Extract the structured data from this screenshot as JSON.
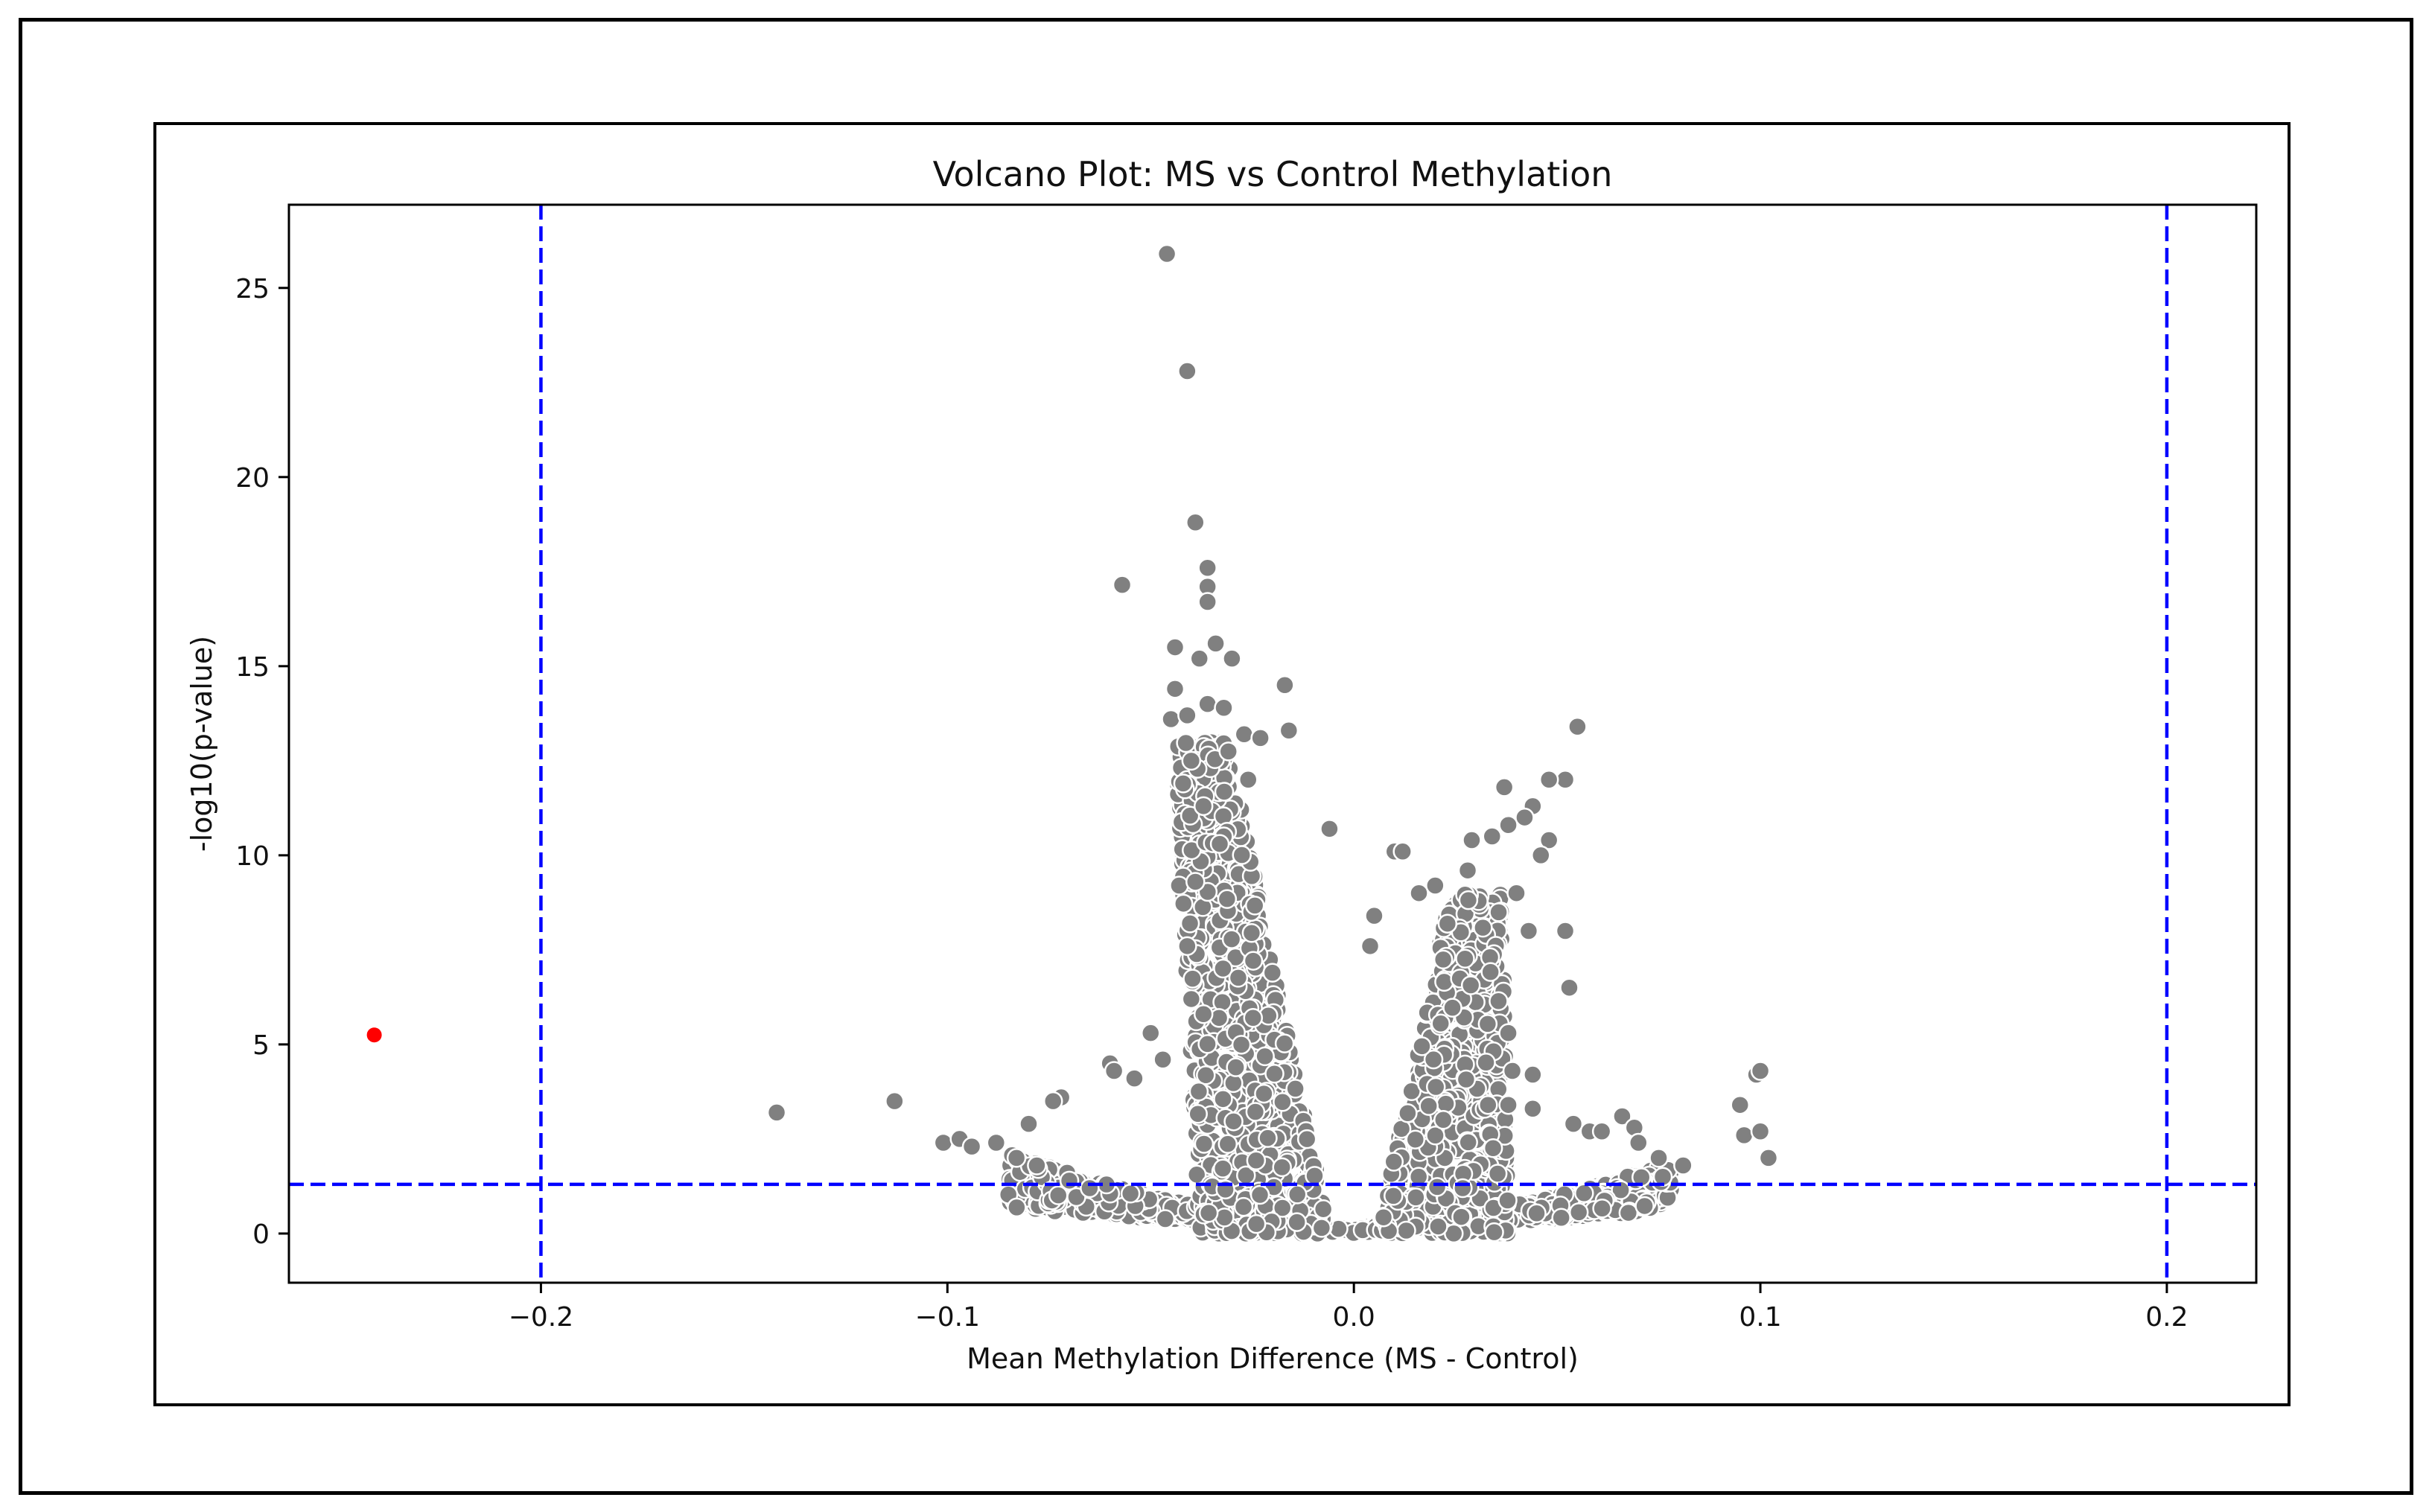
{
  "chart_data": {
    "type": "scatter",
    "title": "Volcano Plot: MS vs Control Methylation",
    "xlabel": "Mean Methylation Difference (MS - Control)",
    "ylabel": "-log10(p-value)",
    "xlim": [
      -0.262,
      0.222
    ],
    "ylim": [
      -1.3,
      27.2
    ],
    "xticks": [
      {
        "value": -0.2,
        "label": "−0.2"
      },
      {
        "value": -0.1,
        "label": "−0.1"
      },
      {
        "value": 0.0,
        "label": "0.0"
      },
      {
        "value": 0.1,
        "label": "0.1"
      },
      {
        "value": 0.2,
        "label": "0.2"
      }
    ],
    "yticks": [
      {
        "value": 0,
        "label": "0"
      },
      {
        "value": 5,
        "label": "5"
      },
      {
        "value": 10,
        "label": "10"
      },
      {
        "value": 15,
        "label": "15"
      },
      {
        "value": 20,
        "label": "20"
      },
      {
        "value": 25,
        "label": "25"
      }
    ],
    "grid": false,
    "thresholds": {
      "x": [
        -0.2,
        0.2
      ],
      "y": 1.3,
      "color": "#0000ff",
      "style": "dashed"
    },
    "series": [
      {
        "color": "#ff0000",
        "points": [
          [
            -0.241,
            5.25
          ]
        ]
      },
      {
        "color": "#808080",
        "points": [
          [
            -0.046,
            25.9
          ],
          [
            -0.041,
            22.8
          ],
          [
            -0.039,
            18.8
          ],
          [
            -0.036,
            17.6
          ],
          [
            -0.036,
            17.1
          ],
          [
            -0.036,
            16.7
          ],
          [
            -0.057,
            17.15
          ],
          [
            -0.044,
            15.5
          ],
          [
            -0.034,
            15.6
          ],
          [
            -0.038,
            15.2
          ],
          [
            -0.03,
            15.2
          ],
          [
            -0.017,
            14.5
          ],
          [
            -0.044,
            14.4
          ],
          [
            -0.036,
            14.0
          ],
          [
            -0.045,
            13.6
          ],
          [
            -0.041,
            13.7
          ],
          [
            -0.032,
            13.9
          ],
          [
            -0.016,
            13.3
          ],
          [
            -0.027,
            13.2
          ],
          [
            -0.023,
            13.1
          ],
          [
            -0.04,
            12.5
          ],
          [
            -0.026,
            12.0
          ],
          [
            -0.042,
            11.9
          ],
          [
            -0.037,
            11.3
          ],
          [
            -0.033,
            10.3
          ],
          [
            -0.006,
            10.7
          ],
          [
            -0.043,
            9.2
          ],
          [
            -0.039,
            9.3
          ],
          [
            -0.041,
            7.6
          ],
          [
            -0.04,
            6.2
          ],
          [
            -0.037,
            5.8
          ],
          [
            -0.05,
            5.3
          ],
          [
            -0.047,
            4.6
          ],
          [
            -0.054,
            4.1
          ],
          [
            -0.06,
            4.5
          ],
          [
            -0.059,
            4.3
          ],
          [
            -0.072,
            3.6
          ],
          [
            -0.074,
            3.5
          ],
          [
            -0.08,
            2.9
          ],
          [
            -0.142,
            3.2
          ],
          [
            -0.113,
            3.5
          ],
          [
            -0.101,
            2.4
          ],
          [
            -0.097,
            2.5
          ],
          [
            -0.094,
            2.3
          ],
          [
            -0.088,
            2.4
          ],
          [
            -0.083,
            2.0
          ],
          [
            -0.078,
            1.8
          ],
          [
            -0.07,
            1.4
          ],
          [
            -0.065,
            1.2
          ],
          [
            0.055,
            13.4
          ],
          [
            0.052,
            12.0
          ],
          [
            0.048,
            12.0
          ],
          [
            0.037,
            11.8
          ],
          [
            0.044,
            11.3
          ],
          [
            0.042,
            11.0
          ],
          [
            0.038,
            10.8
          ],
          [
            0.034,
            10.5
          ],
          [
            0.029,
            10.4
          ],
          [
            0.048,
            10.4
          ],
          [
            0.046,
            10.0
          ],
          [
            0.01,
            10.1
          ],
          [
            0.012,
            10.1
          ],
          [
            0.028,
            9.6
          ],
          [
            0.02,
            9.2
          ],
          [
            0.016,
            9.0
          ],
          [
            0.04,
            9.0
          ],
          [
            0.043,
            8.0
          ],
          [
            0.052,
            8.0
          ],
          [
            0.005,
            8.4
          ],
          [
            0.004,
            7.6
          ],
          [
            0.053,
            6.5
          ],
          [
            0.038,
            5.3
          ],
          [
            0.039,
            4.3
          ],
          [
            0.044,
            4.2
          ],
          [
            0.033,
            3.4
          ],
          [
            0.038,
            3.4
          ],
          [
            0.044,
            3.3
          ],
          [
            0.054,
            2.9
          ],
          [
            0.058,
            2.7
          ],
          [
            0.061,
            2.7
          ],
          [
            0.066,
            3.1
          ],
          [
            0.069,
            2.8
          ],
          [
            0.07,
            2.4
          ],
          [
            0.075,
            2.0
          ],
          [
            0.081,
            1.8
          ],
          [
            0.095,
            3.4
          ],
          [
            0.099,
            4.2
          ],
          [
            0.1,
            4.3
          ],
          [
            0.096,
            2.6
          ],
          [
            0.1,
            2.7
          ],
          [
            0.102,
            2.0
          ],
          [
            0.076,
            1.5
          ]
        ]
      }
    ],
    "dense_clouds": [
      {
        "x_center": -0.022,
        "x_halfwidth": 0.016,
        "y_top": 13.0,
        "notes": "left arm"
      },
      {
        "x_center": 0.022,
        "x_halfwidth": 0.016,
        "y_top": 9.0,
        "notes": "right arm"
      },
      {
        "x_range": [
          -0.085,
          0.078
        ],
        "y_top": 3.0,
        "notes": "base"
      }
    ]
  }
}
